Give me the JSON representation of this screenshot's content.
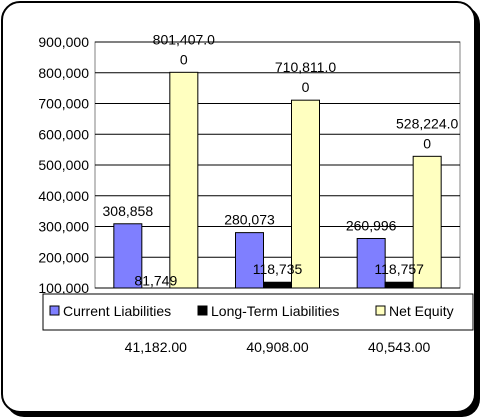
{
  "chart_data": {
    "type": "bar",
    "title": "",
    "xlabel": "",
    "ylabel": "",
    "ylim": [
      100000,
      900000
    ],
    "yticks": [
      100000,
      200000,
      300000,
      400000,
      500000,
      600000,
      700000,
      800000,
      900000
    ],
    "ytick_labels": [
      "100,000",
      "200,000",
      "300,000",
      "400,000",
      "500,000",
      "600,000",
      "700,000",
      "800,000",
      "900,000"
    ],
    "categories": [
      "41,182.00",
      "40,908.00",
      "40,543.00"
    ],
    "grid": "horizontal",
    "legend_position": "bottom",
    "series": [
      {
        "name": "Current Liabilities",
        "color": "#7f7fff",
        "values": [
          308858,
          280073,
          260996
        ],
        "labels": [
          "308,858",
          "280,073",
          "260,996"
        ]
      },
      {
        "name": "Long-Term Liabilities",
        "color": "#000000",
        "values": [
          81749,
          118735,
          118757
        ],
        "labels": [
          "81,749",
          "118,735",
          "118,757"
        ]
      },
      {
        "name": "Net Equity",
        "color": "#ffffc0",
        "values": [
          801407,
          710811,
          528224
        ],
        "labels": [
          "801,407.0\n0",
          "710,811.0\n0",
          "528,224.0\n0"
        ]
      }
    ]
  }
}
